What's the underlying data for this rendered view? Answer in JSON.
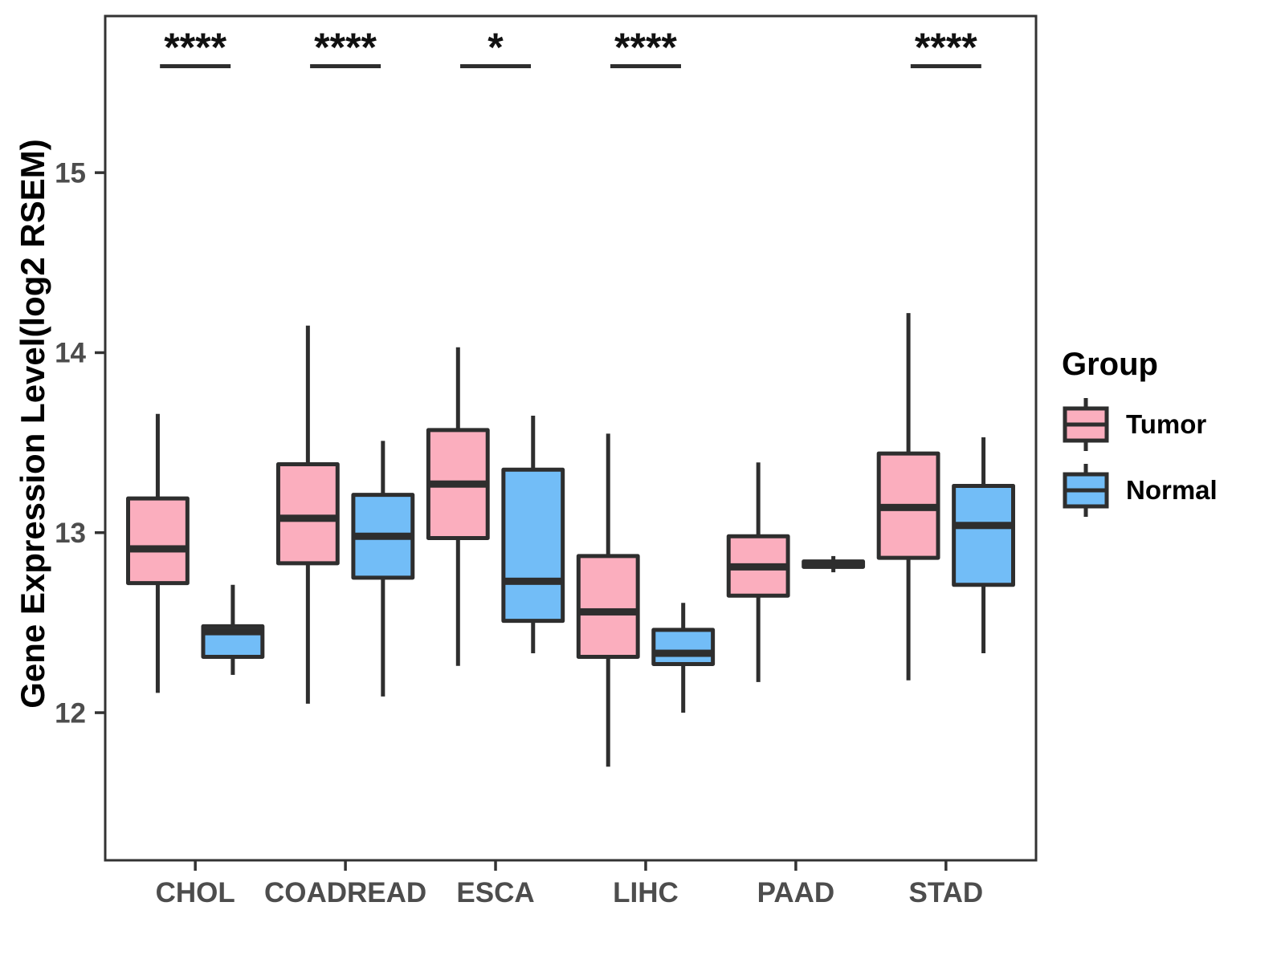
{
  "chart_data": {
    "type": "boxplot",
    "title": "",
    "xlabel": "",
    "ylabel": "Gene Expression Level(log2 RSEM)",
    "ylim": [
      11.18,
      15.87
    ],
    "yticks": [
      12,
      13,
      14,
      15
    ],
    "grid": "off",
    "legend_position": "right",
    "categories": [
      "CHOL",
      "COADREAD",
      "ESCA",
      "LIHC",
      "PAAD",
      "STAD"
    ],
    "colors": {
      "frame": "#333333",
      "stroke": "#2e2e2e",
      "axis_text": "#4d4d4d",
      "tumor": "#fbaebe",
      "normal": "#72bdf7"
    },
    "legend": {
      "title": "Group",
      "entries": [
        {
          "label": "Tumor",
          "color": "#fbaebe"
        },
        {
          "label": "Normal",
          "color": "#72bdf7"
        }
      ]
    },
    "significance": [
      {
        "category": "CHOL",
        "label": "****"
      },
      {
        "category": "COADREAD",
        "label": "****"
      },
      {
        "category": "ESCA",
        "label": "*"
      },
      {
        "category": "LIHC",
        "label": "****"
      },
      {
        "category": "STAD",
        "label": "****"
      }
    ],
    "series": [
      {
        "name": "Tumor",
        "color": "#fbaebe",
        "boxes": [
          {
            "category": "CHOL",
            "min": 12.11,
            "q1": 12.72,
            "median": 12.91,
            "q3": 13.19,
            "max": 13.66
          },
          {
            "category": "COADREAD",
            "min": 12.05,
            "q1": 12.83,
            "median": 13.08,
            "q3": 13.38,
            "max": 14.15
          },
          {
            "category": "ESCA",
            "min": 12.26,
            "q1": 12.97,
            "median": 13.27,
            "q3": 13.57,
            "max": 14.03
          },
          {
            "category": "LIHC",
            "min": 11.7,
            "q1": 12.31,
            "median": 12.56,
            "q3": 12.87,
            "max": 13.55
          },
          {
            "category": "PAAD",
            "min": 12.17,
            "q1": 12.65,
            "median": 12.81,
            "q3": 12.98,
            "max": 13.39
          },
          {
            "category": "STAD",
            "min": 12.18,
            "q1": 12.86,
            "median": 13.14,
            "q3": 13.44,
            "max": 14.22
          }
        ]
      },
      {
        "name": "Normal",
        "color": "#72bdf7",
        "boxes": [
          {
            "category": "CHOL",
            "min": 12.21,
            "q1": 12.31,
            "median": 12.45,
            "q3": 12.48,
            "max": 12.71
          },
          {
            "category": "COADREAD",
            "min": 12.09,
            "q1": 12.75,
            "median": 12.98,
            "q3": 13.21,
            "max": 13.51
          },
          {
            "category": "ESCA",
            "min": 12.33,
            "q1": 12.51,
            "median": 12.73,
            "q3": 13.35,
            "max": 13.65
          },
          {
            "category": "LIHC",
            "min": 12.0,
            "q1": 12.27,
            "median": 12.33,
            "q3": 12.46,
            "max": 12.61
          },
          {
            "category": "PAAD",
            "min": 12.78,
            "q1": 12.81,
            "median": 12.82,
            "q3": 12.84,
            "max": 12.87
          },
          {
            "category": "STAD",
            "min": 12.33,
            "q1": 12.71,
            "median": 13.04,
            "q3": 13.26,
            "max": 13.53
          }
        ]
      }
    ]
  }
}
